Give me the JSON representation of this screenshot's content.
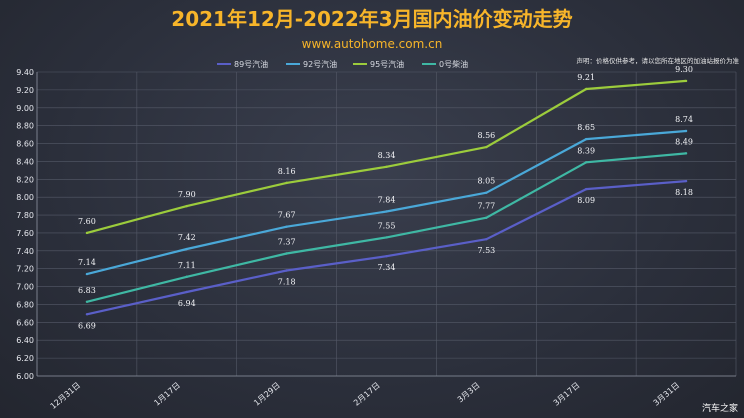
{
  "chart_data": {
    "type": "line",
    "title": "2021年12月-2022年3月国内油价变动走势",
    "subtitle": "www.autohome.com.cn",
    "note": "声明：价格仅供参考，请以您所在地区的加油站报价为准",
    "watermark": "汽车之家",
    "categories": [
      "12月31日",
      "1月17日",
      "1月29日",
      "2月17日",
      "3月3日",
      "3月17日",
      "3月31日"
    ],
    "ylim": [
      6.0,
      9.4
    ],
    "yticks": [
      "6.00",
      "6.20",
      "6.40",
      "6.60",
      "6.80",
      "7.00",
      "7.20",
      "7.40",
      "7.60",
      "7.80",
      "8.00",
      "8.20",
      "8.40",
      "8.60",
      "8.80",
      "9.00",
      "9.20",
      "9.40"
    ],
    "grid": true,
    "legend_position": "top-center",
    "series": [
      {
        "name": "89号汽油",
        "color": "#5a5fc8",
        "values": [
          6.69,
          6.94,
          7.18,
          7.34,
          7.53,
          8.09,
          8.18
        ],
        "labels": [
          "6.69",
          "6.94",
          "7.18",
          "7.34",
          "7.53",
          "8.09",
          "8.18"
        ]
      },
      {
        "name": "92号汽油",
        "color": "#4aa8d8",
        "values": [
          7.14,
          7.42,
          7.67,
          7.84,
          8.05,
          8.65,
          8.74
        ],
        "labels": [
          "7.14",
          "7.42",
          "7.67",
          "7.84",
          "8.05",
          "8.65",
          "8.74"
        ]
      },
      {
        "name": "95号汽油",
        "color": "#9ccc3c",
        "values": [
          7.6,
          7.9,
          8.16,
          8.34,
          8.56,
          9.21,
          9.3
        ],
        "labels": [
          "7.60",
          "7.90",
          "8.16",
          "8.34",
          "8.56",
          "9.21",
          "9.30"
        ]
      },
      {
        "name": "0号柴油",
        "color": "#3fb8a4",
        "values": [
          6.83,
          7.11,
          7.37,
          7.55,
          7.77,
          8.39,
          8.49
        ],
        "labels": [
          "6.83",
          "7.11",
          "7.37",
          "7.55",
          "7.77",
          "8.39",
          "8.49"
        ]
      }
    ]
  }
}
